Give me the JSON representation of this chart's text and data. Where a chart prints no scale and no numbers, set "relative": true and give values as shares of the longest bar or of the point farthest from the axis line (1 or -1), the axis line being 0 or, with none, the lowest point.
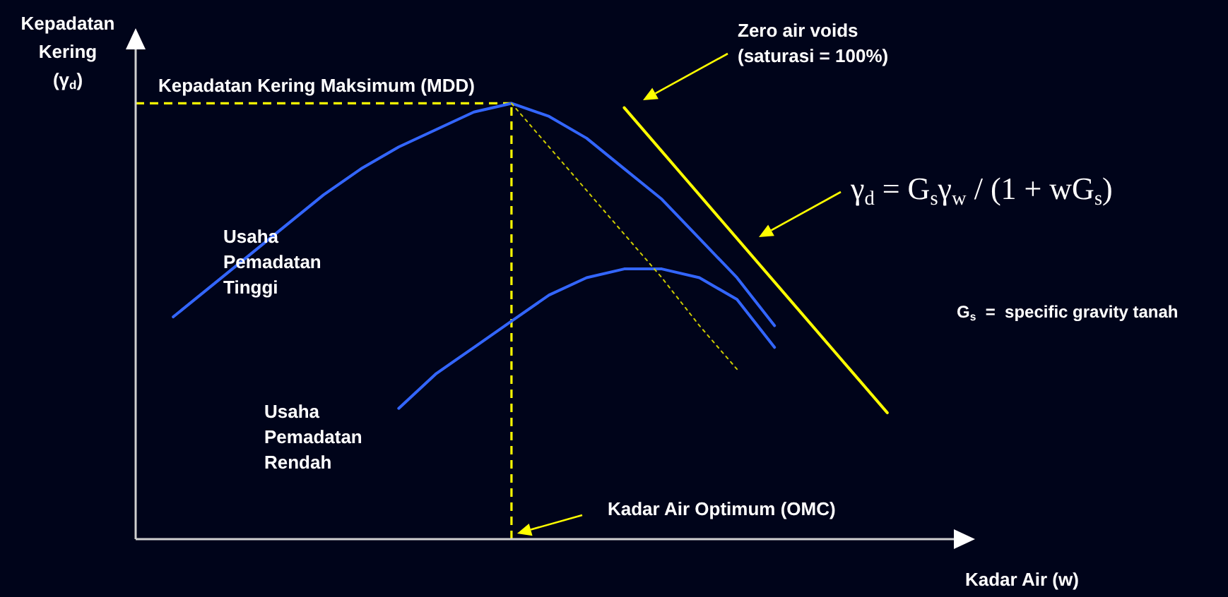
{
  "chart_data": {
    "type": "line",
    "relative": true,
    "xlabel": "Kadar Air (w)",
    "ylabel": "Kepadatan Kering (γ$_{d}$)",
    "categories": [
      null,
      null,
      null,
      null,
      null,
      null,
      null,
      null,
      null,
      null,
      null,
      null,
      null,
      null,
      null,
      null,
      null,
      null,
      null,
      null,
      null,
      null
    ],
    "series": [
      {
        "name": "Usaha Pemadatan Tinggi",
        "color": "#3366ff",
        "values": [
          null,
          0.51,
          0.58,
          0.65,
          0.72,
          0.79,
          0.85,
          0.9,
          0.94,
          0.98,
          1,
          0.97,
          0.92,
          0.85,
          0.78,
          0.69,
          0.6,
          0.49,
          null,
          null,
          null,
          null
        ]
      },
      {
        "name": "Usaha Pemadatan Rendah",
        "color": "#3366ff",
        "values": [
          null,
          null,
          null,
          null,
          null,
          null,
          null,
          0.3,
          0.38,
          0.44,
          0.5,
          0.56,
          0.6,
          0.62,
          0.62,
          0.6,
          0.55,
          0.44,
          null,
          null,
          null,
          null
        ]
      },
      {
        "color": "#ffff00",
        "values": [
          null,
          null,
          null,
          null,
          null,
          null,
          null,
          null,
          null,
          null,
          null,
          null,
          null,
          0.99,
          0.89,
          0.79,
          0.69,
          0.59,
          0.49,
          0.39,
          0.29,
          null
        ]
      },
      {
        "color": "#cccc00",
        "line_style": "dotted",
        "values": [
          null,
          null,
          null,
          null,
          null,
          null,
          null,
          null,
          null,
          null,
          1,
          0.9,
          0.8,
          0.7,
          0.6,
          0.49,
          0.39,
          null,
          null,
          null,
          null,
          null
        ]
      }
    ],
    "ref_lines": [
      {
        "axis": "y",
        "value": 1,
        "label": "Kepadatan Kering Maksimum (MDD)",
        "color": "#ffff00",
        "line_style": "dashed"
      }
    ],
    "annotations": [
      "γ$_{d}$ = G$_{s}$γ$_{w}$ / (1 + wG$_{s}$)",
      "G$_{s}$  =  specific gravity tanah",
      "Zero air voids (saturasi = 100%)",
      "Kadar Air Optimum (OMC)"
    ],
    "line_style": "solid",
    "marker": "none",
    "grid": false,
    "legend": false
  }
}
